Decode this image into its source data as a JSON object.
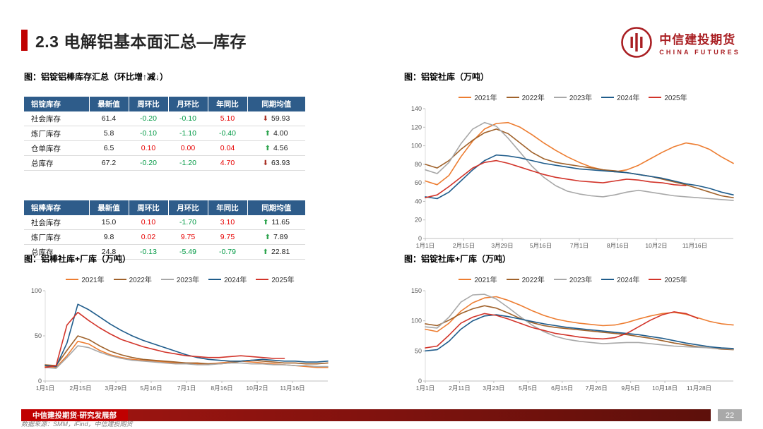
{
  "page": {
    "title": "2.3 电解铝基本面汇总—库存",
    "footer_text": "中信建投期货·研究发展部",
    "page_number": "22",
    "source_text": "数据来源：SMM，iFind，中信建投期货"
  },
  "logo": {
    "name_cn": "中信建投期货",
    "name_en": "CHINA FUTURES"
  },
  "colors": {
    "accent_red": "#C00000",
    "table_header_bg": "#2E5C8A",
    "positive_red": "#E60000",
    "negative_green": "#009944"
  },
  "tables": {
    "title": "图：铝锭铝棒库存汇总（环比增↑减↓）",
    "ingot": {
      "headers": [
        "铝锭库存",
        "最新值",
        "周环比",
        "月环比",
        "年同比",
        "同期均值"
      ],
      "rows": [
        {
          "label": "社会库存",
          "latest": "61.4",
          "wow": "-0.20",
          "wow_c": "neg",
          "mom": "-0.10",
          "mom_c": "neg",
          "yoy": "5.10",
          "yoy_c": "pos",
          "arrow": "⬇",
          "arrow_c": "down",
          "avg": "59.93"
        },
        {
          "label": "炼厂库存",
          "latest": "5.8",
          "wow": "-0.10",
          "wow_c": "neg",
          "mom": "-1.10",
          "mom_c": "neg",
          "yoy": "-0.40",
          "yoy_c": "neg",
          "arrow": "⬆",
          "arrow_c": "up",
          "avg": "4.00"
        },
        {
          "label": "仓单库存",
          "latest": "6.5",
          "wow": "0.10",
          "wow_c": "pos",
          "mom": "0.00",
          "mom_c": "pos",
          "yoy": "0.04",
          "yoy_c": "pos",
          "arrow": "⬆",
          "arrow_c": "up",
          "avg": "4.56"
        },
        {
          "label": "总库存",
          "latest": "67.2",
          "wow": "-0.20",
          "wow_c": "neg",
          "mom": "-1.20",
          "mom_c": "neg",
          "yoy": "4.70",
          "yoy_c": "pos",
          "arrow": "⬇",
          "arrow_c": "down",
          "avg": "63.93"
        }
      ]
    },
    "rod": {
      "headers": [
        "铝棒库存",
        "最新值",
        "周环比",
        "月环比",
        "年同比",
        "同期均值"
      ],
      "rows": [
        {
          "label": "社会库存",
          "latest": "15.0",
          "wow": "0.10",
          "wow_c": "pos",
          "mom": "-1.70",
          "mom_c": "neg",
          "yoy": "3.10",
          "yoy_c": "pos",
          "arrow": "⬆",
          "arrow_c": "up",
          "avg": "11.65"
        },
        {
          "label": "炼厂库存",
          "latest": "9.8",
          "wow": "0.02",
          "wow_c": "pos",
          "mom": "9.75",
          "mom_c": "pos",
          "yoy": "9.75",
          "yoy_c": "pos",
          "arrow": "⬆",
          "arrow_c": "up",
          "avg": "7.89"
        },
        {
          "label": "总库存",
          "latest": "24.8",
          "wow": "-0.13",
          "wow_c": "neg",
          "mom": "-5.49",
          "mom_c": "neg",
          "yoy": "-0.79",
          "yoy_c": "neg",
          "arrow": "⬆",
          "arrow_c": "up",
          "avg": "22.81"
        }
      ]
    }
  },
  "chart_data": [
    {
      "type": "line",
      "title": "图：铝锭社库（万吨）",
      "ylabel": "万吨",
      "ylim": [
        0,
        140
      ],
      "yticks": [
        0,
        20,
        40,
        60,
        80,
        100,
        120,
        140
      ],
      "xlabels": [
        "1月1日",
        "2月15日",
        "3月29日",
        "5月16日",
        "7月1日",
        "8月16日",
        "10月2日",
        "11月16日"
      ],
      "x_count": 27,
      "legend_position": "top",
      "grid": false,
      "series": [
        {
          "name": "2021年",
          "color": "#ED7D31",
          "values": [
            62,
            58,
            68,
            88,
            105,
            118,
            124,
            125,
            120,
            112,
            103,
            95,
            88,
            82,
            77,
            74,
            72,
            74,
            79,
            86,
            93,
            99,
            103,
            101,
            96,
            88,
            81
          ]
        },
        {
          "name": "2022年",
          "color": "#A0622B",
          "values": [
            80,
            76,
            84,
            96,
            106,
            114,
            118,
            113,
            103,
            93,
            86,
            82,
            80,
            78,
            76,
            74,
            73,
            71,
            69,
            67,
            64,
            61,
            58,
            54,
            50,
            46,
            44
          ]
        },
        {
          "name": "2023年",
          "color": "#A8A8A8",
          "values": [
            74,
            70,
            82,
            102,
            118,
            125,
            121,
            108,
            93,
            78,
            66,
            57,
            51,
            48,
            46,
            45,
            47,
            50,
            52,
            50,
            48,
            46,
            45,
            44,
            43,
            42,
            41
          ]
        },
        {
          "name": "2024年",
          "color": "#1F5C8B",
          "values": [
            45,
            43,
            50,
            62,
            74,
            84,
            90,
            89,
            87,
            84,
            81,
            79,
            77,
            75,
            74,
            73,
            72,
            71,
            69,
            67,
            65,
            62,
            59,
            57,
            54,
            50,
            47
          ]
        },
        {
          "name": "2025年",
          "color": "#D2342A",
          "values": [
            44,
            47,
            56,
            66,
            76,
            82,
            84,
            81,
            77,
            73,
            69,
            66,
            64,
            62,
            61,
            60,
            62,
            64,
            63,
            61,
            60,
            58,
            57
          ]
        }
      ]
    },
    {
      "type": "line",
      "title": "图：铝棒社库+厂库（万吨）",
      "ylabel": "万吨",
      "ylim": [
        0,
        100
      ],
      "yticks": [
        0,
        50,
        100
      ],
      "xlabels": [
        "1月1日",
        "2月15日",
        "3月29日",
        "5月16日",
        "7月1日",
        "8月16日",
        "10月2日",
        "11月16日"
      ],
      "x_count": 27,
      "legend_position": "top",
      "grid": false,
      "series": [
        {
          "name": "2021年",
          "color": "#ED7D31",
          "values": [
            16,
            15,
            28,
            44,
            41,
            34,
            29,
            26,
            24,
            23,
            22,
            21,
            20,
            20,
            19,
            19,
            20,
            21,
            22,
            21,
            20,
            19,
            18,
            17,
            16,
            15,
            15
          ]
        },
        {
          "name": "2022年",
          "color": "#A0622B",
          "values": [
            18,
            17,
            34,
            50,
            46,
            39,
            33,
            29,
            26,
            24,
            23,
            22,
            21,
            20,
            20,
            19,
            19,
            20,
            22,
            23,
            22,
            21,
            20,
            20,
            19,
            19,
            20
          ]
        },
        {
          "name": "2023年",
          "color": "#A8A8A8",
          "values": [
            15,
            14,
            26,
            39,
            37,
            32,
            28,
            25,
            23,
            22,
            21,
            20,
            19,
            19,
            18,
            18,
            19,
            20,
            20,
            19,
            19,
            18,
            18,
            17,
            17,
            16,
            16
          ]
        },
        {
          "name": "2024年",
          "color": "#1F5C8B",
          "values": [
            17,
            16,
            42,
            85,
            79,
            71,
            63,
            56,
            50,
            45,
            41,
            37,
            33,
            29,
            26,
            24,
            23,
            22,
            22,
            23,
            24,
            23,
            22,
            22,
            21,
            21,
            22
          ]
        },
        {
          "name": "2025年",
          "color": "#D2342A",
          "values": [
            15,
            17,
            62,
            76,
            67,
            59,
            52,
            46,
            42,
            38,
            35,
            32,
            30,
            28,
            27,
            26,
            26,
            27,
            28,
            27,
            26,
            25,
            25
          ]
        }
      ]
    },
    {
      "type": "line",
      "title": "图：铝锭社库+厂库（万吨）",
      "ylabel": "万吨",
      "ylim": [
        0,
        150
      ],
      "yticks": [
        0,
        50,
        100,
        150
      ],
      "xlabels": [
        "1月1日",
        "2月11日",
        "3月23日",
        "5月5日",
        "6月15日",
        "7月26日",
        "9月5日",
        "10月18日",
        "11月28日"
      ],
      "x_count": 27,
      "legend_position": "top",
      "grid": false,
      "series": [
        {
          "name": "2021年",
          "color": "#ED7D31",
          "values": [
            86,
            82,
            96,
            116,
            130,
            138,
            140,
            134,
            126,
            117,
            109,
            103,
            99,
            96,
            94,
            92,
            93,
            97,
            103,
            108,
            112,
            114,
            111,
            105,
            99,
            95,
            93
          ]
        },
        {
          "name": "2022年",
          "color": "#A0622B",
          "values": [
            95,
            92,
            101,
            112,
            120,
            125,
            121,
            113,
            104,
            97,
            92,
            89,
            87,
            85,
            83,
            81,
            79,
            77,
            74,
            71,
            67,
            63,
            60,
            57,
            55,
            53,
            52
          ]
        },
        {
          "name": "2023年",
          "color": "#A8A8A8",
          "values": [
            90,
            88,
            106,
            131,
            143,
            144,
            136,
            122,
            107,
            93,
            82,
            74,
            69,
            66,
            64,
            62,
            63,
            64,
            64,
            62,
            60,
            58,
            57,
            56,
            55,
            54,
            53
          ]
        },
        {
          "name": "2024年",
          "color": "#1F5C8B",
          "values": [
            50,
            52,
            66,
            86,
            100,
            108,
            110,
            107,
            103,
            99,
            95,
            92,
            89,
            87,
            85,
            83,
            81,
            79,
            77,
            74,
            71,
            67,
            63,
            60,
            57,
            55,
            54
          ]
        },
        {
          "name": "2025年",
          "color": "#D2342A",
          "values": [
            55,
            58,
            76,
            96,
            106,
            112,
            109,
            103,
            96,
            89,
            84,
            79,
            76,
            73,
            71,
            70,
            72,
            79,
            90,
            101,
            110,
            115,
            112,
            104
          ]
        }
      ]
    }
  ]
}
